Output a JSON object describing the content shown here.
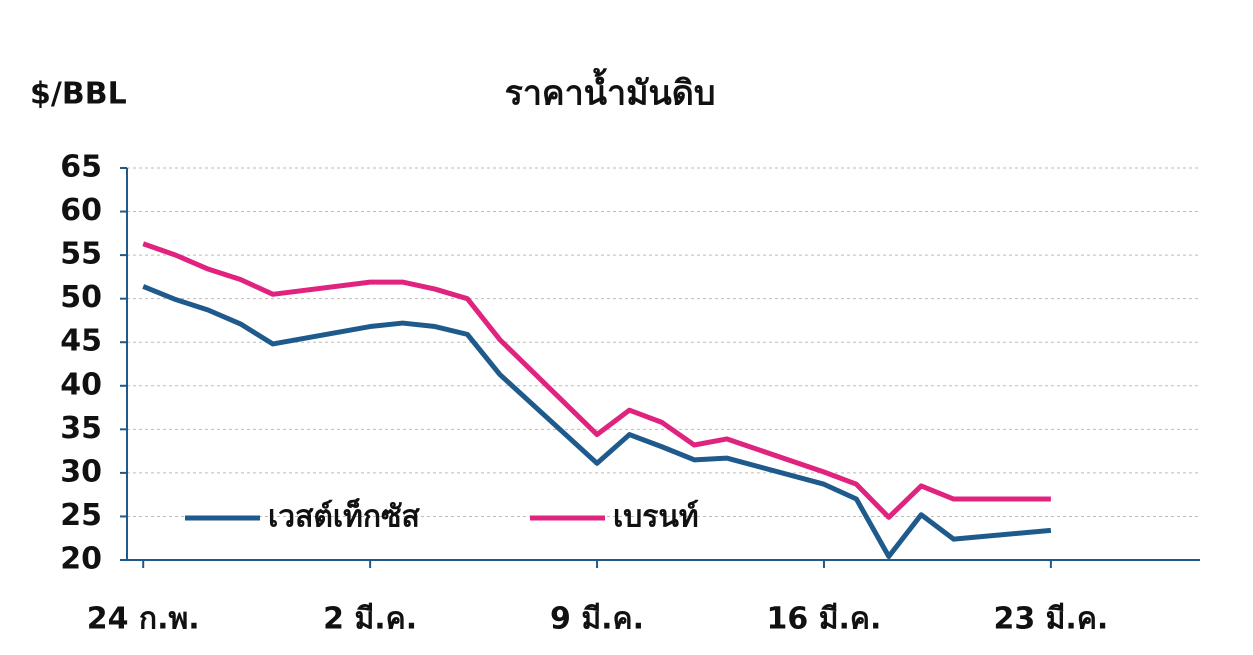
{
  "chart_data": {
    "type": "line",
    "title": "ราคาน้ำมันดิบ",
    "y_label": "$/BBL",
    "x": [
      0,
      1,
      2,
      3,
      4,
      7,
      8,
      9,
      10,
      11,
      14,
      15,
      16,
      17,
      18,
      21,
      22,
      23,
      24,
      25,
      28
    ],
    "xlim": [
      -0.5,
      32.6
    ],
    "xticks": [
      {
        "value": 0,
        "label": "24 ก.พ."
      },
      {
        "value": 7,
        "label": "2 มี.ค."
      },
      {
        "value": 14,
        "label": "9 มี.ค."
      },
      {
        "value": 21,
        "label": "16 มี.ค."
      },
      {
        "value": 28,
        "label": "23 มี.ค."
      }
    ],
    "ylim": [
      20,
      65
    ],
    "yticks": [
      20,
      25,
      30,
      35,
      40,
      45,
      50,
      55,
      60,
      65
    ],
    "grid": true,
    "legend": "lower left",
    "series": [
      {
        "name": "เวสต์เท็กซัส",
        "color": "#1f5a8c",
        "values": [
          51.4,
          49.9,
          48.7,
          47.1,
          44.8,
          46.8,
          47.2,
          46.8,
          45.9,
          41.3,
          31.1,
          34.4,
          33.0,
          31.5,
          31.7,
          28.7,
          27.0,
          20.4,
          25.2,
          22.4,
          23.4
        ]
      },
      {
        "name": "เบรนท์",
        "color": "#e0237f",
        "values": [
          56.3,
          55.0,
          53.4,
          52.2,
          50.5,
          51.9,
          51.9,
          51.1,
          50.0,
          45.3,
          34.4,
          37.2,
          35.8,
          33.2,
          33.9,
          30.1,
          28.7,
          24.9,
          28.5,
          27.0,
          27.0
        ]
      }
    ]
  }
}
